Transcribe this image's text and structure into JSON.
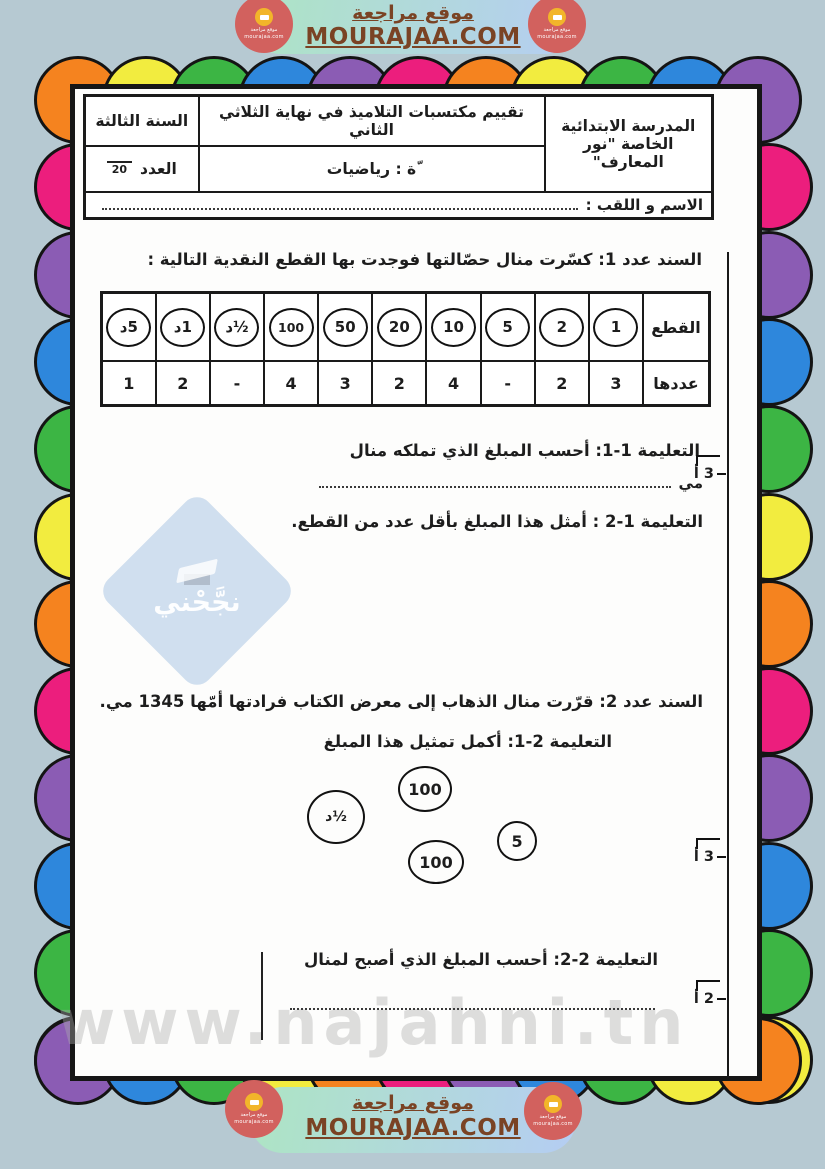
{
  "banner": {
    "site_title": "موقع مراجعة",
    "site_url": "MOURAJAA.COM",
    "logo_text": "موقع مراجعة",
    "logo_sub": "mourajaa.com"
  },
  "header": {
    "school_line1": "المدرسة الابتدائية",
    "school_line2": "الخاصة \"نور المعارف\"",
    "eval_title": "تقييم مكتسبات التلاميذ في نهاية الثلاثي الثاني",
    "subject": "ّة : رياضيات",
    "year": "السنة الثالثة",
    "grade_label": "العدد",
    "grade_max": "20",
    "name_label": "الاسم و اللقب :"
  },
  "exercise1": {
    "title": "السند عدد 1: كسّرت منال حصّالتها فوجدت بها القطع النقدية التالية :",
    "table": {
      "row1_header": "القطع",
      "row2_header": "عددها",
      "coins": [
        {
          "label": "1",
          "count": "3"
        },
        {
          "label": "2",
          "count": "2"
        },
        {
          "label": "5",
          "count": "-"
        },
        {
          "label": "10",
          "count": "4"
        },
        {
          "label": "20",
          "count": "2"
        },
        {
          "label": "50",
          "count": "3"
        },
        {
          "label": "100",
          "count": "4"
        },
        {
          "label": "½د",
          "count": "-"
        },
        {
          "label": "1د",
          "count": "2"
        },
        {
          "label": "5د",
          "count": "1"
        }
      ]
    },
    "inst_1_1": "التعليمة 1-1: أحسب المبلغ الذي تملكه منال",
    "answer_unit": "مي",
    "inst_1_2": "التعليمة 1-2 : أمثل هذا المبلغ بأقل عدد من القطع."
  },
  "exercise2": {
    "title": "السند عدد 2: قرّرت منال الذهاب إلى معرض الكتاب فرادتها أمّها 1345 مي.",
    "inst_2_1": "التعليمة 2-1: أكمل تمثيل هذا المبلغ",
    "coins": [
      "½د",
      "100",
      "5",
      "100"
    ],
    "inst_2_2": "التعليمة 2-2: أحسب المبلغ الذي أصبح لمنال"
  },
  "margin_markers": [
    {
      "label": "3 أ"
    },
    {
      "label": "3 أ"
    },
    {
      "label": "2 أ"
    }
  ],
  "watermark": {
    "diamond_text": "نجَّحْني",
    "site_text": "www.najahni.tn"
  },
  "colors": {
    "background": "#b6c9d2",
    "banner_text": "#7a4324",
    "logo_red": "#d2615e",
    "logo_yellow": "#f2b52a",
    "border_palette": [
      "#f5831f",
      "#ec1e7d",
      "#8b5cb4",
      "#2e87dc",
      "#3cb544",
      "#f2ec3f"
    ]
  }
}
